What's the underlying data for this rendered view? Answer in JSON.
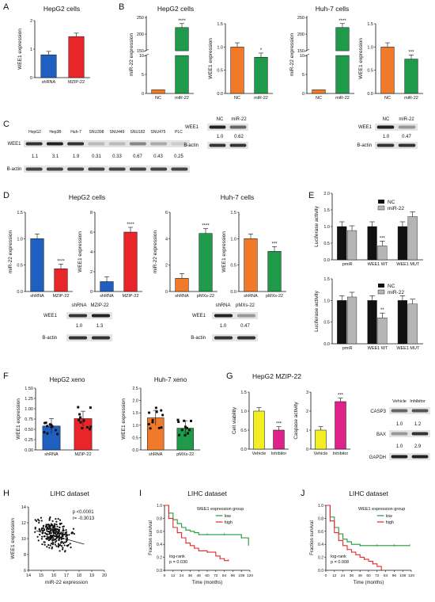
{
  "panels": {
    "A": {
      "letter": "A",
      "title": "HepG2 cells",
      "chart_data": {
        "type": "bar",
        "ylabel": "WEE1 expression",
        "categories": [
          "shRNA",
          "MZIP-22"
        ],
        "values": [
          1.0,
          1.8
        ],
        "ylim": [
          0,
          2.5
        ],
        "ticks": [
          "0",
          "1",
          "2"
        ],
        "colors": [
          "#1f5fbf",
          "#e8262a"
        ]
      }
    },
    "B": {
      "letter": "B",
      "title_left": "HepG2 cells",
      "title_right": "Huh-7 cells",
      "charts": [
        {
          "type": "bar",
          "ylabel": "miR-22 expression",
          "categories": [
            "NC",
            "miR-22"
          ],
          "values": [
            1.0,
            220
          ],
          "upper_ticks": [
            "150",
            "200",
            "250"
          ],
          "lower_ticks": [
            "0",
            "5",
            "10"
          ],
          "sig": "****",
          "colors": [
            "#f07a2a",
            "#1f9a4a"
          ]
        },
        {
          "type": "bar",
          "ylabel": "WEE1 expression",
          "categories": [
            "NC",
            "miR-22"
          ],
          "values": [
            1.0,
            0.78
          ],
          "ticks": [
            "0.0",
            "0.5",
            "1.0",
            "1.5"
          ],
          "ylim": [
            0,
            1.5
          ],
          "sig": "*",
          "colors": [
            "#f07a2a",
            "#1f9a4a"
          ]
        },
        {
          "type": "bar",
          "ylabel": "miR-22 expression",
          "categories": [
            "NC",
            "miR-22"
          ],
          "values": [
            1.0,
            220
          ],
          "upper_ticks": [
            "150",
            "200",
            "250"
          ],
          "lower_ticks": [
            "0",
            "5",
            "10"
          ],
          "sig": "****",
          "colors": [
            "#f07a2a",
            "#1f9a4a"
          ]
        },
        {
          "type": "bar",
          "ylabel": "WEE1 expression",
          "categories": [
            "NC",
            "miR-22"
          ],
          "values": [
            1.0,
            0.74
          ],
          "ticks": [
            "0.0",
            "0.5",
            "1.0",
            "1.5"
          ],
          "ylim": [
            0,
            1.5
          ],
          "sig": "***",
          "colors": [
            "#f07a2a",
            "#1f9a4a"
          ]
        }
      ]
    },
    "C": {
      "letter": "C",
      "cell_lines": [
        "HepG2",
        "Hep3B",
        "Huh-7",
        "SNU398",
        "SNU449",
        "SNU182",
        "SNU475",
        "PLC"
      ],
      "row_labels": [
        "WEE1",
        "B-actin"
      ],
      "values": [
        "1.1",
        "3.1",
        "1.9",
        "0.31",
        "0.33",
        "0.67",
        "0.43",
        "0.25"
      ],
      "blot_hep": {
        "lanes": [
          "NC",
          "miR-22"
        ],
        "rows": [
          "WEE1",
          "B-actin"
        ],
        "values": [
          "1.0",
          "0.62"
        ]
      },
      "blot_huh": {
        "lanes": [
          "NC",
          "miR-22"
        ],
        "rows": [
          "WEE1",
          "B-actin"
        ],
        "values": [
          "1.0",
          "0.47"
        ]
      }
    },
    "D": {
      "letter": "D",
      "title_left": "HepG2 cells",
      "title_right": "Huh-7 cells",
      "charts": [
        {
          "type": "bar",
          "ylabel": "miR-22 expression",
          "categories": [
            "shRNA",
            "MZIP-22"
          ],
          "values": [
            1.0,
            0.43
          ],
          "ticks": [
            "0.0",
            "0.5",
            "1.0",
            "1.5"
          ],
          "ylim": [
            0,
            1.5
          ],
          "sig": "****",
          "colors": [
            "#1f5fbf",
            "#e8262a"
          ]
        },
        {
          "type": "bar",
          "ylabel": "WEE1 expression",
          "categories": [
            "shRNA",
            "MZIP-22"
          ],
          "values": [
            1.0,
            6.0
          ],
          "ticks": [
            "0",
            "2",
            "4",
            "6",
            "8"
          ],
          "ylim": [
            0,
            8
          ],
          "sig": "****",
          "colors": [
            "#1f5fbf",
            "#e8262a"
          ]
        },
        {
          "type": "bar",
          "ylabel": "miR-22 expression",
          "categories": [
            "shRNA",
            "pMXs-22"
          ],
          "values": [
            1.0,
            4.4
          ],
          "ticks": [
            "0",
            "2",
            "4",
            "6"
          ],
          "ylim": [
            0,
            6
          ],
          "sig": "****",
          "colors": [
            "#f07a2a",
            "#1f9a4a"
          ]
        },
        {
          "type": "bar",
          "ylabel": "WEE1 expression",
          "categories": [
            "shRNA",
            "pMXs-22"
          ],
          "values": [
            1.0,
            0.76
          ],
          "ticks": [
            "0.0",
            "0.5",
            "1.0",
            "1.5"
          ],
          "ylim": [
            0,
            1.5
          ],
          "sig": "***",
          "colors": [
            "#f07a2a",
            "#1f9a4a"
          ]
        }
      ],
      "blot_hep": {
        "lanes": [
          "shRNA",
          "MZIP-22"
        ],
        "rows": [
          "WEE1",
          "B-actin"
        ],
        "values": [
          "1.0",
          "1.3"
        ]
      },
      "blot_huh": {
        "lanes": [
          "shRNA",
          "pMXs-22"
        ],
        "rows": [
          "WEE1",
          "B-actin"
        ],
        "values": [
          "1.0",
          "0.47"
        ]
      }
    },
    "E": {
      "letter": "E",
      "legend": [
        "NC",
        "miR-22"
      ],
      "charts": [
        {
          "type": "bar",
          "ylabel": "Luciferase activity",
          "categories": [
            "pmiR",
            "WEE1 WT",
            "WEE1 MUT"
          ],
          "series": [
            {
              "name": "NC",
              "values": [
                1.0,
                1.0,
                1.0
              ]
            },
            {
              "name": "miR-22",
              "values": [
                0.88,
                0.42,
                1.3
              ]
            }
          ],
          "ticks": [
            "0.0",
            "0.5",
            "1.0",
            "1.5",
            "2.0"
          ],
          "ylim": [
            0,
            2.0
          ],
          "sig": "***"
        },
        {
          "type": "bar",
          "ylabel": "Luciferase activity",
          "categories": [
            "pmiR",
            "WEE1 WT",
            "WEE1 MUT"
          ],
          "series": [
            {
              "name": "NC",
              "values": [
                1.0,
                1.0,
                1.0
              ]
            },
            {
              "name": "miR-22",
              "values": [
                1.08,
                0.6,
                0.92
              ]
            }
          ],
          "ticks": [
            "0.0",
            "0.5",
            "1.0",
            "1.5"
          ],
          "ylim": [
            0,
            1.5
          ],
          "sig": "**"
        }
      ]
    },
    "F": {
      "letter": "F",
      "charts": [
        {
          "type": "scatter-bar",
          "title": "HepG2 xeno",
          "ylabel": "WEE1 expression",
          "categories": [
            "shRNA",
            "MZIP-22"
          ],
          "values": [
            0.58,
            0.76
          ],
          "ticks": [
            "0.00",
            "0.25",
            "0.50",
            "0.75",
            "1.00",
            "1.25",
            "1.50"
          ],
          "ylim": [
            0,
            1.5
          ],
          "colors": [
            "#1f5fbf",
            "#e8262a"
          ]
        },
        {
          "type": "scatter-bar",
          "title": "Huh-7 xeno",
          "ylabel": "WEE1 expression",
          "categories": [
            "shRNA",
            "pMXs-22"
          ],
          "values": [
            1.3,
            0.88
          ],
          "ticks": [
            "0.0",
            "0.5",
            "1.0",
            "1.5",
            "2.0",
            "2.5"
          ],
          "ylim": [
            0,
            2.5
          ],
          "colors": [
            "#f07a2a",
            "#1f9a4a"
          ]
        }
      ]
    },
    "G": {
      "letter": "G",
      "title": "HepG2 MZIP-22",
      "charts": [
        {
          "type": "bar",
          "ylabel": "Cell viability",
          "categories": [
            "Vehicle",
            "Inhibitor"
          ],
          "values": [
            1.0,
            0.5
          ],
          "ticks": [
            "0.0",
            "0.5",
            "1.0",
            "1.5"
          ],
          "ylim": [
            0,
            1.5
          ],
          "sig": "***",
          "colors": [
            "#f2ee22",
            "#e0218a"
          ]
        },
        {
          "type": "bar",
          "ylabel": "Caspase activity",
          "categories": [
            "Vehicle",
            "Inhibitor"
          ],
          "values": [
            1.0,
            2.5
          ],
          "ticks": [
            "0",
            "1",
            "2",
            "3"
          ],
          "ylim": [
            0,
            3
          ],
          "sig": "***",
          "colors": [
            "#f2ee22",
            "#e0218a"
          ]
        }
      ],
      "blot": {
        "lanes": [
          "Vehicle",
          "Inhibitor"
        ],
        "rows": [
          "CASP3",
          "BAX",
          "GAPDH"
        ],
        "values1": [
          "1.0",
          "1.2"
        ],
        "values2": [
          "1.0",
          "2.9"
        ]
      }
    },
    "H": {
      "letter": "H",
      "title": "LIHC dataset",
      "chart_data": {
        "type": "scatter",
        "xlabel": "miR-22 expression",
        "ylabel": "WEE1 expression",
        "xticks": [
          "14",
          "15",
          "16",
          "17",
          "18",
          "19",
          "20"
        ],
        "yticks": [
          "6",
          "8",
          "10",
          "12",
          "14"
        ],
        "xlim": [
          14,
          20
        ],
        "ylim": [
          6,
          14
        ],
        "annot1": "p <0.0001",
        "annot2": "r= -0.3013"
      }
    },
    "I": {
      "letter": "I",
      "title": "LIHC dataset",
      "chart_data": {
        "type": "line",
        "legend_title": "WEE1 expression group",
        "legend": [
          "low",
          "high"
        ],
        "xlabel": "Time (months)",
        "ylabel": "Fraction survival",
        "xticks": [
          "0",
          "12",
          "24",
          "36",
          "48",
          "60",
          "72",
          "84",
          "96",
          "108",
          "120"
        ],
        "yticks": [
          "0.0",
          "0.2",
          "0.4",
          "0.6",
          "0.8",
          "1.0"
        ],
        "annot1": "log-rank",
        "annot2": "p = 0.030",
        "series": [
          {
            "name": "low",
            "color": "#1f9a3a",
            "x": [
              0,
              6,
              12,
              18,
              24,
              30,
              36,
              42,
              48,
              60,
              72,
              84,
              96,
              108,
              118
            ],
            "y": [
              1.0,
              0.88,
              0.78,
              0.72,
              0.66,
              0.62,
              0.6,
              0.58,
              0.55,
              0.55,
              0.55,
              0.55,
              0.55,
              0.5,
              0.38
            ]
          },
          {
            "name": "high",
            "color": "#e8262a",
            "x": [
              0,
              6,
              12,
              18,
              24,
              30,
              36,
              42,
              48,
              60,
              72,
              78,
              84,
              90
            ],
            "y": [
              1.0,
              0.8,
              0.66,
              0.58,
              0.5,
              0.42,
              0.38,
              0.34,
              0.3,
              0.28,
              0.22,
              0.18,
              0.15,
              0.15
            ]
          }
        ]
      }
    },
    "J": {
      "letter": "J",
      "title": "LIHC dataset",
      "chart_data": {
        "type": "line",
        "legend_title": "WEE1 expression group",
        "legend": [
          "low",
          "high"
        ],
        "xlabel": "Time (months)",
        "ylabel": "Fraction survival",
        "xticks": [
          "0",
          "12",
          "24",
          "36",
          "48",
          "60",
          "72",
          "84",
          "96",
          "108",
          "120"
        ],
        "yticks": [
          "0.0",
          "0.2",
          "0.4",
          "0.6",
          "0.8",
          "1.0"
        ],
        "annot1": "log-rank",
        "annot2": "p = 0.008",
        "series": [
          {
            "name": "low",
            "color": "#1f9a3a",
            "x": [
              0,
              6,
              12,
              18,
              24,
              30,
              36,
              48,
              60,
              72,
              84,
              96,
              108,
              118
            ],
            "y": [
              1.0,
              0.82,
              0.66,
              0.56,
              0.48,
              0.44,
              0.4,
              0.38,
              0.38,
              0.38,
              0.38,
              0.38,
              0.38,
              0.38
            ]
          },
          {
            "name": "high",
            "color": "#e8262a",
            "x": [
              0,
              6,
              12,
              18,
              24,
              30,
              36,
              42,
              48,
              54,
              60,
              66,
              72,
              78
            ],
            "y": [
              1.0,
              0.76,
              0.58,
              0.46,
              0.38,
              0.32,
              0.28,
              0.24,
              0.2,
              0.17,
              0.14,
              0.1,
              0.06,
              0.0
            ]
          }
        ]
      }
    }
  }
}
